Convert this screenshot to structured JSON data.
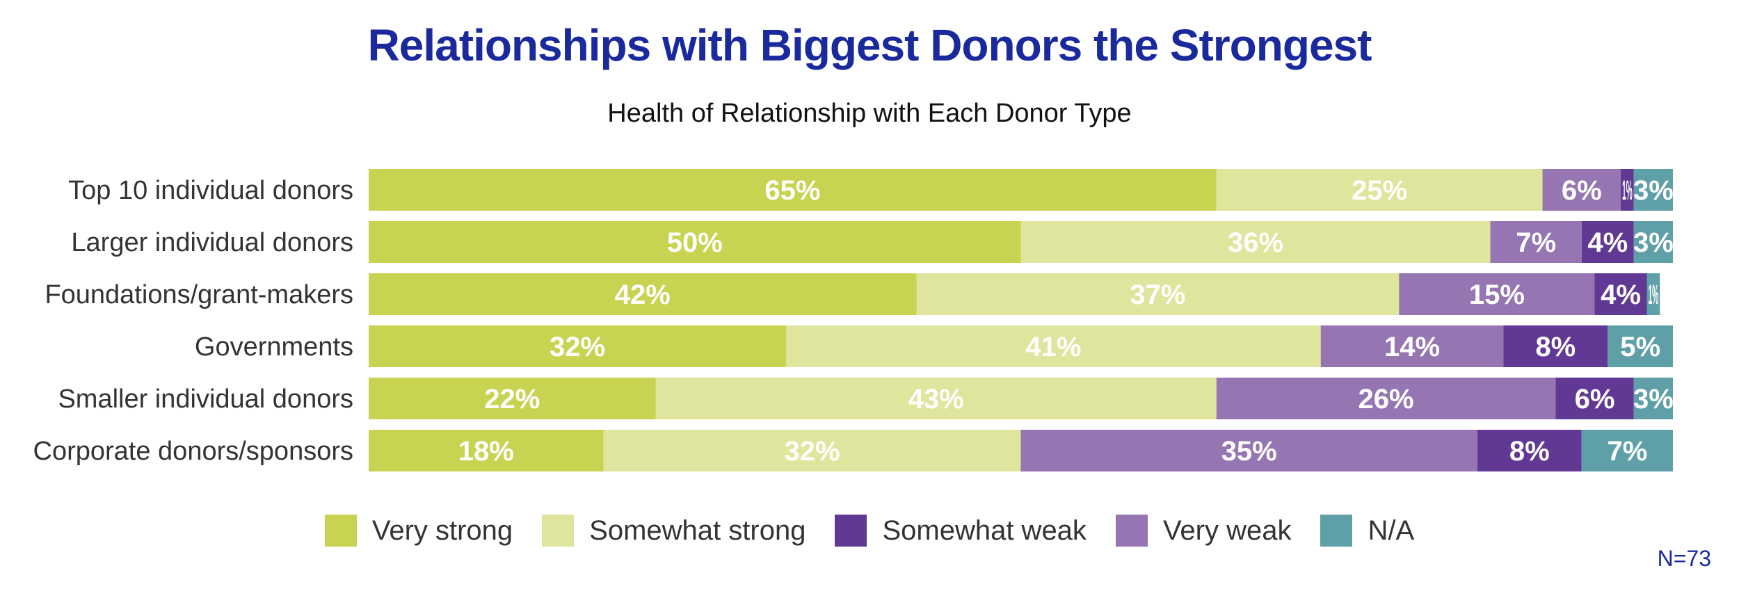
{
  "chart_data": {
    "type": "bar",
    "orientation": "horizontal",
    "stacked": true,
    "title": "Relationships with Biggest Donors the Strongest",
    "subtitle": "Health of Relationship with Each Donor Type",
    "categories": [
      "Top 10 individual donors",
      "Larger individual donors",
      "Foundations/grant-makers",
      "Governments",
      "Smaller individual donors",
      "Corporate donors/sponsors"
    ],
    "series": [
      {
        "name": "Very strong",
        "color": "#c8d352",
        "values": [
          65,
          50,
          42,
          32,
          22,
          18
        ]
      },
      {
        "name": "Somewhat strong",
        "color": "#dfe59c",
        "values": [
          25,
          36,
          37,
          41,
          43,
          32
        ]
      },
      {
        "name": "Very weak",
        "color": "#9576b2",
        "values": [
          6,
          7,
          15,
          14,
          26,
          35
        ]
      },
      {
        "name": "Somewhat weak",
        "color": "#613894",
        "values": [
          1,
          4,
          4,
          8,
          6,
          8
        ]
      },
      {
        "name": "N/A",
        "color": "#5e9fa8",
        "values": [
          3,
          3,
          1,
          5,
          3,
          7
        ]
      }
    ],
    "value_suffix": "%",
    "xlim": [
      0,
      100
    ],
    "grid": false,
    "legend": {
      "placement": "bottom",
      "order": [
        "Very strong",
        "Somewhat strong",
        "Somewhat weak",
        "Very weak",
        "N/A"
      ]
    },
    "annotation": "N=73"
  }
}
